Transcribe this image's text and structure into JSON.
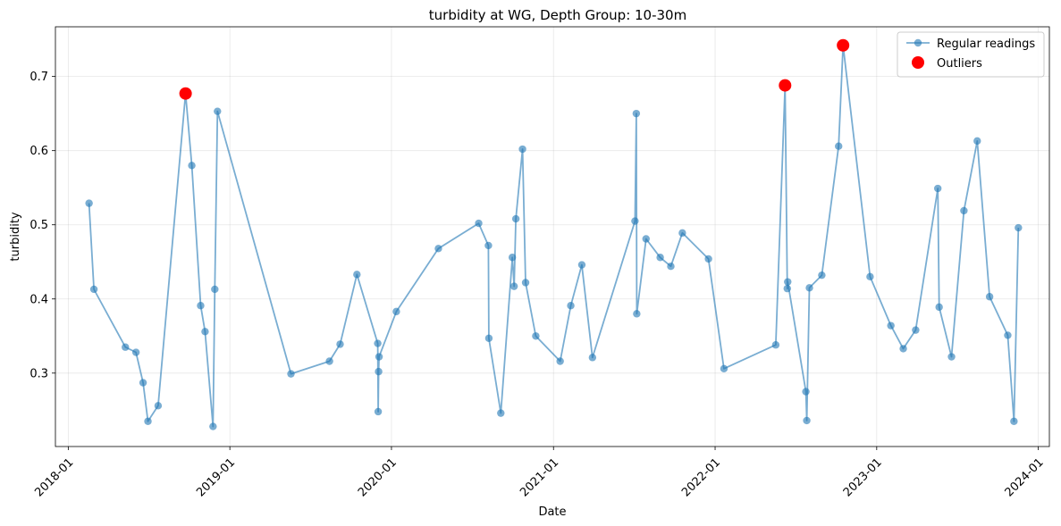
{
  "chart_data": {
    "type": "line",
    "title": "turbidity at WG, Depth Group: 10-30m",
    "xlabel": "Date",
    "ylabel": "turbidity",
    "x_ticks": [
      "2018-01",
      "2019-01",
      "2020-01",
      "2021-01",
      "2022-01",
      "2023-01",
      "2024-01"
    ],
    "y_ticks": [
      "0.3",
      "0.4",
      "0.5",
      "0.6",
      "0.7"
    ],
    "xlim": [
      "2017-12-03",
      "2024-01-26"
    ],
    "ylim": [
      0.201,
      0.767
    ],
    "grid": true,
    "legend_position": "top-right",
    "colors": {
      "regular": "#1f77b4",
      "outlier": "#ff0000"
    },
    "series": [
      {
        "name": "Regular readings",
        "style": "line-with-markers",
        "x": [
          "2018-02-17",
          "2018-02-28",
          "2018-05-10",
          "2018-06-03",
          "2018-06-19",
          "2018-06-30",
          "2018-07-23",
          "2018-09-23",
          "2018-10-07",
          "2018-10-27",
          "2018-11-06",
          "2018-11-24",
          "2018-11-28",
          "2018-12-04",
          "2019-05-19",
          "2019-08-14",
          "2019-09-07",
          "2019-10-15",
          "2019-12-01",
          "2019-12-02",
          "2019-12-03",
          "2019-12-04",
          "2020-01-12",
          "2020-04-16",
          "2020-07-16",
          "2020-08-07",
          "2020-08-08",
          "2020-09-04",
          "2020-09-30",
          "2020-10-04",
          "2020-10-08",
          "2020-10-23",
          "2020-10-30",
          "2020-11-22",
          "2021-01-16",
          "2021-02-09",
          "2021-03-06",
          "2021-03-30",
          "2021-07-04",
          "2021-07-07",
          "2021-07-08",
          "2021-07-29",
          "2021-08-30",
          "2021-09-23",
          "2021-10-19",
          "2021-12-17",
          "2022-01-21",
          "2022-05-18",
          "2022-06-08",
          "2022-06-13",
          "2022-06-14",
          "2022-07-25",
          "2022-07-27",
          "2022-08-02",
          "2022-08-30",
          "2022-10-07",
          "2022-10-17",
          "2022-12-17",
          "2023-02-02",
          "2023-03-02",
          "2023-03-30",
          "2023-05-19",
          "2023-05-22",
          "2023-06-19",
          "2023-07-17",
          "2023-08-16",
          "2023-09-13",
          "2023-10-24",
          "2023-11-07",
          "2023-11-17"
        ],
        "y": [
          0.529,
          0.413,
          0.335,
          0.328,
          0.287,
          0.235,
          0.256,
          0.677,
          0.58,
          0.391,
          0.356,
          0.228,
          0.413,
          0.653,
          0.299,
          0.316,
          0.339,
          0.433,
          0.34,
          0.248,
          0.302,
          0.322,
          0.383,
          0.468,
          0.502,
          0.472,
          0.347,
          0.246,
          0.456,
          0.417,
          0.508,
          0.602,
          0.422,
          0.35,
          0.316,
          0.391,
          0.446,
          0.321,
          0.505,
          0.65,
          0.38,
          0.481,
          0.456,
          0.444,
          0.489,
          0.454,
          0.306,
          0.338,
          0.688,
          0.414,
          0.423,
          0.275,
          0.236,
          0.415,
          0.432,
          0.606,
          0.742,
          0.43,
          0.364,
          0.333,
          0.358,
          0.549,
          0.389,
          0.322,
          0.519,
          0.613,
          0.403,
          0.351,
          0.235,
          0.496
        ]
      },
      {
        "name": "Outliers",
        "style": "markers",
        "x": [
          "2018-09-23",
          "2022-06-08",
          "2022-10-17"
        ],
        "y": [
          0.677,
          0.688,
          0.742
        ]
      }
    ]
  }
}
